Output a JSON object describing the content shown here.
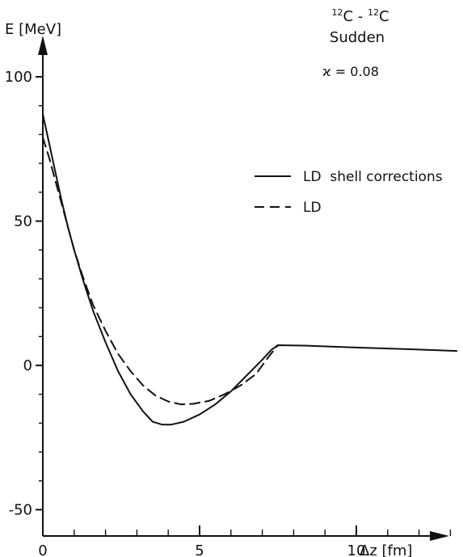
{
  "chart_data": {
    "type": "line",
    "title": "",
    "annotation": {
      "reaction_a_mass": "12",
      "reaction_a_el": "C",
      "reaction_dash": " - ",
      "reaction_b_mass": "12",
      "reaction_b_el": "C",
      "mode": "Sudden",
      "kappa": "ϰ = 0.08"
    },
    "xlabel": "Δz  [fm]",
    "ylabel": "E [MeV]",
    "xlim": [
      0,
      13.2
    ],
    "ylim": [
      -59,
      112
    ],
    "x_ticks_major": [
      0,
      5,
      10
    ],
    "x_ticks_minor": [
      1,
      2,
      3,
      4,
      6,
      7,
      8,
      9,
      11,
      12,
      13
    ],
    "y_ticks_major": [
      -50,
      0,
      50,
      100
    ],
    "y_ticks_minor": [
      -40,
      -30,
      -20,
      -10,
      10,
      20,
      30,
      40,
      60,
      70,
      80,
      90
    ],
    "x_tick_labels": [
      "0",
      "5"
    ],
    "x_tick_label_10": "10",
    "y_tick_labels": [
      "-50",
      "0",
      "50",
      "100"
    ],
    "legend_position": "upper-right",
    "series": [
      {
        "name": "LD  shell corrections",
        "style": "solid",
        "color": "#111111",
        "points": [
          [
            0.0,
            87
          ],
          [
            0.2,
            77
          ],
          [
            0.4,
            67
          ],
          [
            0.6,
            57
          ],
          [
            0.8,
            48
          ],
          [
            1.0,
            40
          ],
          [
            1.3,
            29
          ],
          [
            1.6,
            19
          ],
          [
            2.0,
            8
          ],
          [
            2.4,
            -2
          ],
          [
            2.8,
            -10
          ],
          [
            3.2,
            -16
          ],
          [
            3.5,
            -19.5
          ],
          [
            3.8,
            -20.5
          ],
          [
            4.1,
            -20.5
          ],
          [
            4.5,
            -19.5
          ],
          [
            5.0,
            -17
          ],
          [
            5.5,
            -13.5
          ],
          [
            6.0,
            -9
          ],
          [
            6.5,
            -3.5
          ],
          [
            7.0,
            2
          ],
          [
            7.3,
            5.5
          ],
          [
            7.5,
            7
          ],
          [
            8.5,
            6.8
          ],
          [
            10.0,
            6.2
          ],
          [
            11.5,
            5.7
          ],
          [
            13.2,
            5
          ]
        ]
      },
      {
        "name": "LD",
        "style": "dashed",
        "color": "#111111",
        "points": [
          [
            0.0,
            79
          ],
          [
            0.2,
            72
          ],
          [
            0.4,
            64
          ],
          [
            0.6,
            56
          ],
          [
            0.8,
            48
          ],
          [
            1.0,
            40
          ],
          [
            1.3,
            30
          ],
          [
            1.6,
            21
          ],
          [
            2.0,
            12
          ],
          [
            2.4,
            4
          ],
          [
            2.8,
            -2
          ],
          [
            3.2,
            -7
          ],
          [
            3.6,
            -10.5
          ],
          [
            4.0,
            -12.5
          ],
          [
            4.4,
            -13.5
          ],
          [
            4.8,
            -13.3
          ],
          [
            5.3,
            -12.3
          ],
          [
            5.8,
            -10
          ],
          [
            6.3,
            -7
          ],
          [
            6.8,
            -3
          ],
          [
            7.2,
            3
          ],
          [
            7.5,
            7
          ]
        ]
      }
    ]
  }
}
